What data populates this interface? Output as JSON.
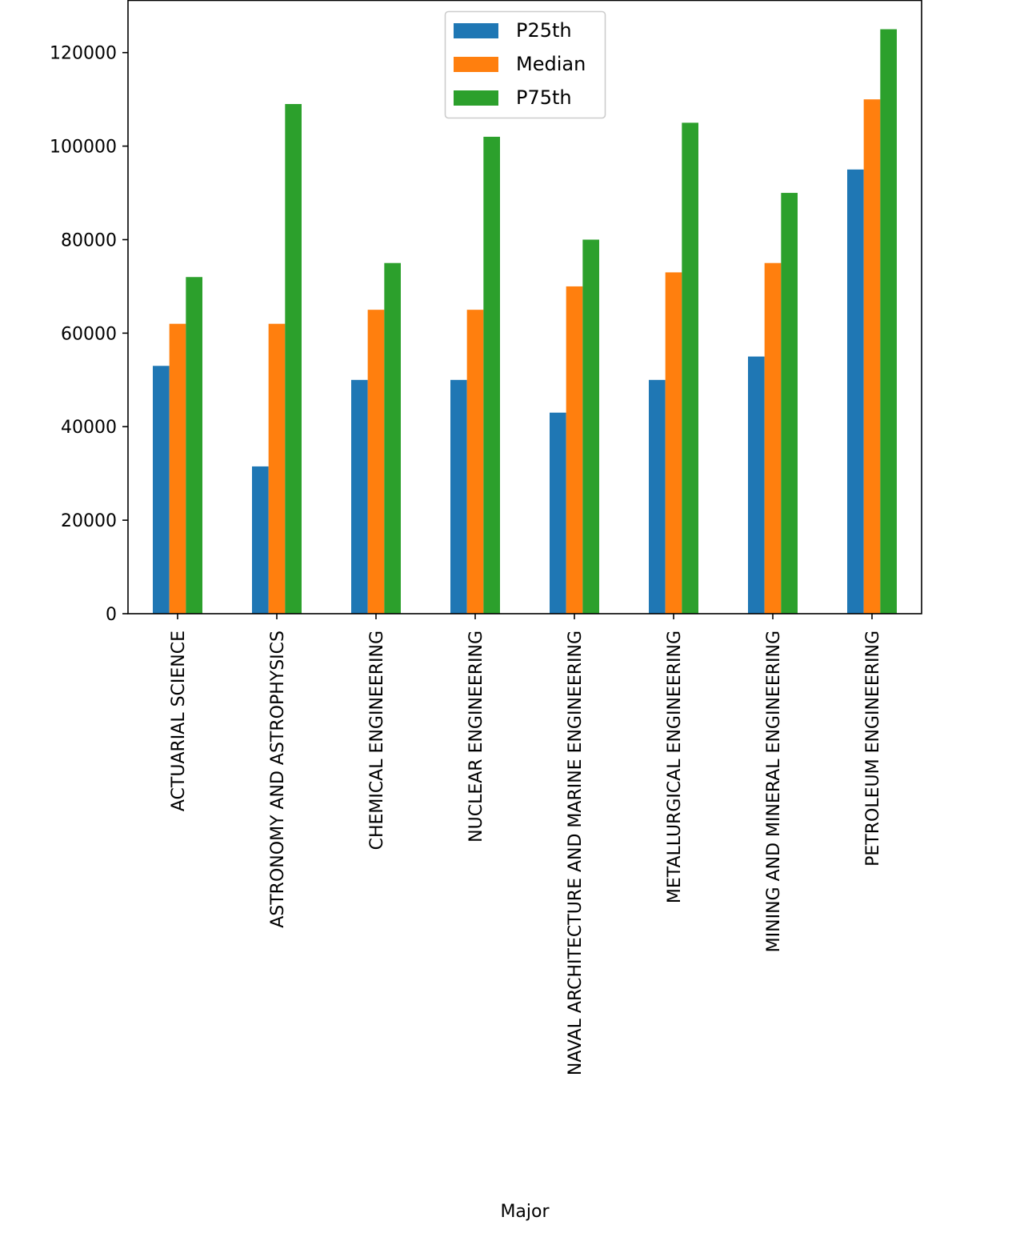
{
  "chart_data": {
    "type": "bar",
    "title": "",
    "xlabel": "Major",
    "ylabel": "",
    "ylim": [
      0,
      131250
    ],
    "yticks": [
      0,
      20000,
      40000,
      60000,
      80000,
      100000,
      120000
    ],
    "grid": false,
    "legend_placement": "top-center",
    "categories": [
      "ACTUARIAL SCIENCE",
      "ASTRONOMY AND ASTROPHYSICS",
      "CHEMICAL ENGINEERING",
      "NUCLEAR ENGINEERING",
      "NAVAL ARCHITECTURE AND MARINE ENGINEERING",
      "METALLURGICAL ENGINEERING",
      "MINING AND MINERAL ENGINEERING",
      "PETROLEUM ENGINEERING"
    ],
    "series": [
      {
        "name": "P25th",
        "color": "#1f77b4",
        "values": [
          53000,
          31500,
          50000,
          50000,
          43000,
          50000,
          55000,
          95000
        ]
      },
      {
        "name": "Median",
        "color": "#ff7f0e",
        "values": [
          62000,
          62000,
          65000,
          65000,
          70000,
          73000,
          75000,
          110000
        ]
      },
      {
        "name": "P75th",
        "color": "#2ca02c",
        "values": [
          72000,
          109000,
          75000,
          102000,
          80000,
          105000,
          90000,
          125000
        ]
      }
    ]
  }
}
